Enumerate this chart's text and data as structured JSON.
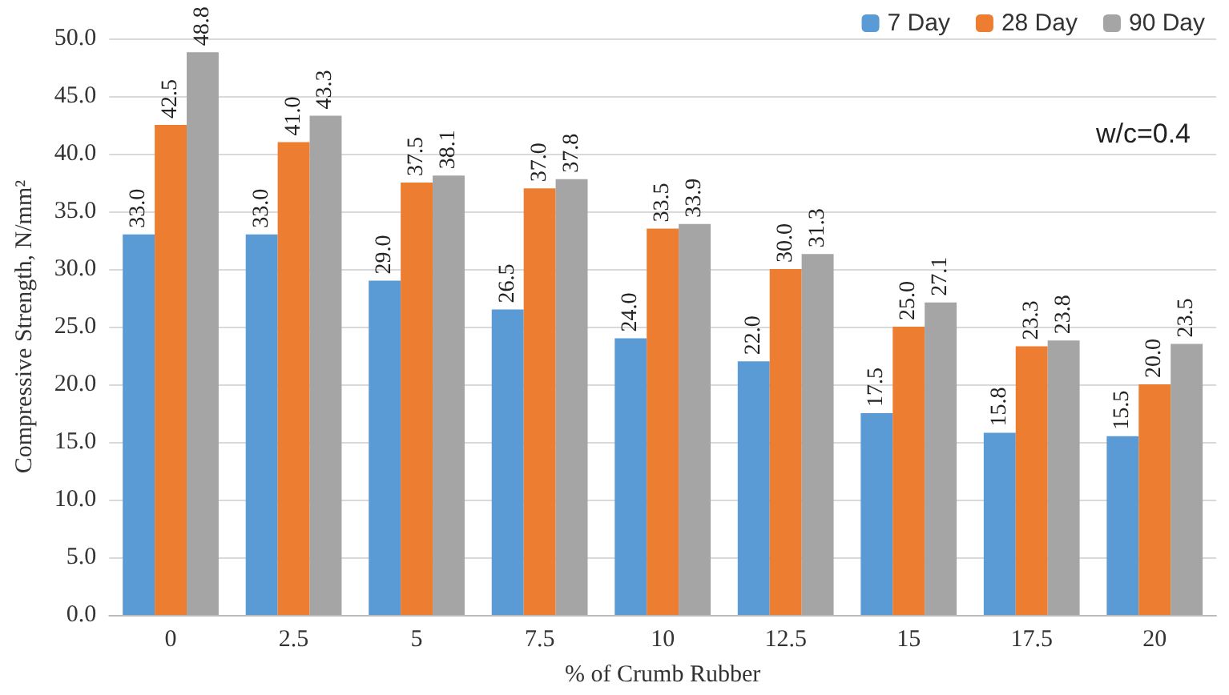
{
  "chart_data": {
    "type": "bar",
    "xlabel": "% of Crumb Rubber",
    "ylabel": "Compressive Strength, N/mm²",
    "categories": [
      "0",
      "2.5",
      "5",
      "7.5",
      "10",
      "12.5",
      "15",
      "17.5",
      "20"
    ],
    "series": [
      {
        "name": "7 Day",
        "color": "#5b9bd5",
        "values": [
          33.0,
          33.0,
          29.0,
          26.5,
          24.0,
          22.0,
          17.5,
          15.8,
          15.5
        ],
        "value_labels": [
          "33.0",
          "33.0",
          "29.0",
          "26.5",
          "24.0",
          "22.0",
          "17.5",
          "15.8",
          "15.5"
        ]
      },
      {
        "name": "28 Day",
        "color": "#ed7d31",
        "values": [
          42.5,
          41.0,
          37.5,
          37.0,
          33.5,
          30.0,
          25.0,
          23.3,
          20.0
        ],
        "value_labels": [
          "42.5",
          "41.0",
          "37.5",
          "37.0",
          "33.5",
          "30.0",
          "25.0",
          "23.3",
          "20.0"
        ]
      },
      {
        "name": "90 Day",
        "color": "#a5a5a5",
        "values": [
          48.8,
          43.3,
          38.1,
          37.8,
          33.9,
          31.3,
          27.1,
          23.8,
          23.5
        ],
        "value_labels": [
          "48.8",
          "43.3",
          "38.1",
          "37.8",
          "33.9",
          "31.3",
          "27.1",
          "23.8",
          "23.5"
        ]
      }
    ],
    "ylim": [
      0,
      50
    ],
    "yticks": [
      {
        "value": 0,
        "label": "0.0"
      },
      {
        "value": 5,
        "label": "5.0"
      },
      {
        "value": 10,
        "label": "10.0"
      },
      {
        "value": 15,
        "label": "15.0"
      },
      {
        "value": 20,
        "label": "20.0"
      },
      {
        "value": 25,
        "label": "25.0"
      },
      {
        "value": 30,
        "label": "30.0"
      },
      {
        "value": 35,
        "label": "35.0"
      },
      {
        "value": 40,
        "label": "40.0"
      },
      {
        "value": 45,
        "label": "45.0"
      },
      {
        "value": 50,
        "label": "50.0"
      }
    ],
    "grid": "y",
    "legend": "top right",
    "annotations": [
      "w/c=0.4"
    ]
  }
}
